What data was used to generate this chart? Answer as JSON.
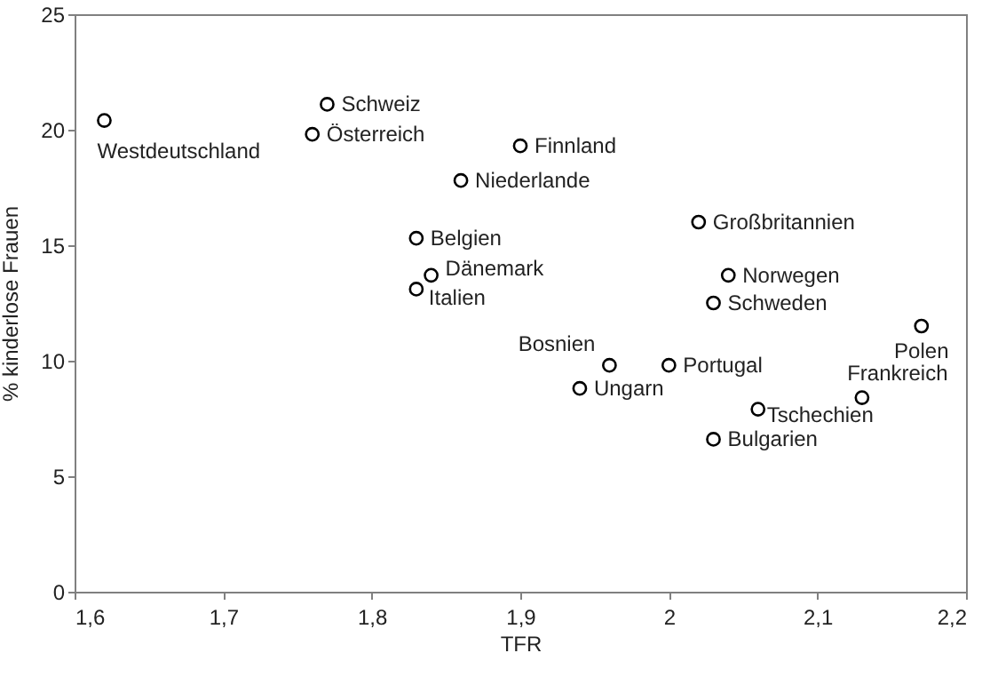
{
  "chart_data": {
    "type": "scatter",
    "xlabel": "TFR",
    "ylabel": "% kinderlose Frauen",
    "x": [
      1.62,
      1.77,
      1.76,
      1.9,
      1.86,
      1.83,
      1.84,
      1.83,
      2.02,
      2.04,
      2.03,
      1.96,
      2.0,
      1.94,
      2.17,
      2.13,
      2.06,
      2.03
    ],
    "series": [
      {
        "color": "#000000",
        "values": [
          20.4,
          21.1,
          19.8,
          19.3,
          17.8,
          15.3,
          13.7,
          13.1,
          16.0,
          13.7,
          12.5,
          9.8,
          9.8,
          8.8,
          11.5,
          8.4,
          7.9,
          6.6
        ]
      }
    ],
    "marker": "circle",
    "xlim": [
      1.6,
      2.2
    ],
    "xticks": [
      {
        "value": 1.6,
        "label": "1,6"
      },
      {
        "value": 1.7,
        "label": "1,7"
      },
      {
        "value": 1.8,
        "label": "1,8"
      },
      {
        "value": 1.9,
        "label": "1,9"
      },
      2,
      {
        "value": 2.1,
        "label": "2,1"
      },
      {
        "value": 2.2,
        "label": "2,2"
      }
    ],
    "ylim": [
      0,
      25
    ],
    "yticks": [
      0,
      5,
      10,
      15,
      20,
      25
    ],
    "annotations": [
      {
        "text": "Westdeutschland",
        "x": 1.62,
        "y": 20.4
      },
      {
        "text": "Schweiz",
        "x": 1.77,
        "y": 21.1
      },
      {
        "text": "Österreich",
        "x": 1.76,
        "y": 19.8
      },
      {
        "text": "Finnland",
        "x": 1.9,
        "y": 19.3
      },
      {
        "text": "Niederlande",
        "x": 1.86,
        "y": 17.8
      },
      {
        "text": "Belgien",
        "x": 1.83,
        "y": 15.3
      },
      {
        "text": "Dänemark",
        "x": 1.84,
        "y": 13.7
      },
      {
        "text": "Italien",
        "x": 1.83,
        "y": 13.1
      },
      {
        "text": "Großbritannien",
        "x": 2.02,
        "y": 16.0
      },
      {
        "text": "Norwegen",
        "x": 2.04,
        "y": 13.7
      },
      {
        "text": "Schweden",
        "x": 2.03,
        "y": 12.5
      },
      {
        "text": "Bosnien",
        "x": 1.96,
        "y": 9.8
      },
      {
        "text": "Portugal",
        "x": 2.0,
        "y": 9.8
      },
      {
        "text": "Ungarn",
        "x": 1.94,
        "y": 8.8
      },
      {
        "text": "Polen",
        "x": 2.17,
        "y": 11.5
      },
      {
        "text": "Frankreich",
        "x": 2.13,
        "y": 8.4
      },
      {
        "text": "Tschechien",
        "x": 2.06,
        "y": 7.9
      },
      {
        "text": "Bulgarien",
        "x": 2.03,
        "y": 6.6
      }
    ],
    "grid": false
  }
}
